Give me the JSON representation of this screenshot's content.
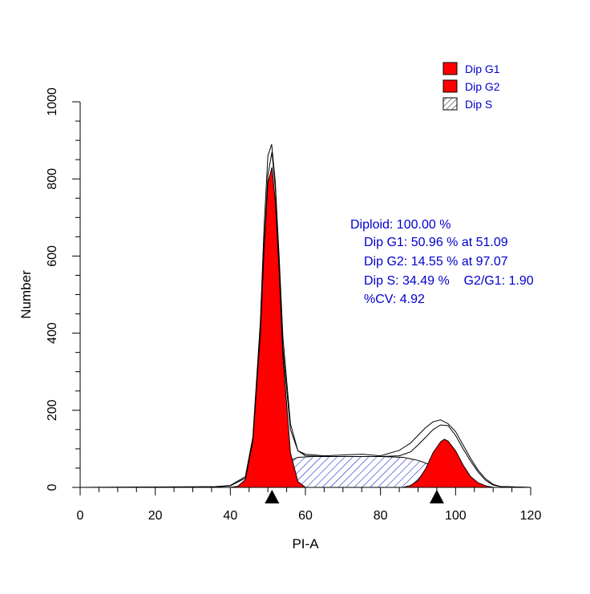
{
  "chart_data": {
    "type": "area",
    "title": "",
    "xlabel": "PI-A",
    "ylabel": "Number",
    "xlim": [
      0,
      120
    ],
    "ylim": [
      0,
      1000
    ],
    "x_ticks": [
      0,
      20,
      40,
      60,
      80,
      100,
      120
    ],
    "y_ticks": [
      0,
      200,
      400,
      600,
      800,
      1000
    ],
    "colors": {
      "g1": "#ff0000",
      "g2": "#ff0000",
      "s_hatch": "#0000cc",
      "outline": "#000000",
      "text": "#0000cc",
      "marker": "#000000"
    },
    "legend": {
      "position": "top-right",
      "items": [
        {
          "label": "Dip G1",
          "style": "solid-red"
        },
        {
          "label": "Dip G2",
          "style": "solid-red"
        },
        {
          "label": "Dip S",
          "style": "hatched"
        }
      ]
    },
    "stats": [
      "Diploid: 100.00 %",
      "Dip G1: 50.96 % at 51.09",
      "Dip G2: 14.55 % at 97.07",
      "Dip S: 34.49 %    G2/G1: 1.90",
      "%CV: 4.92"
    ],
    "markers": [
      51.1,
      95.0
    ],
    "series": [
      {
        "name": "Dip G1",
        "x": [
          40,
          42,
          44,
          46,
          48,
          49,
          50,
          51.1,
          52,
          53,
          54,
          56,
          58,
          60
        ],
        "values": [
          0,
          3,
          20,
          120,
          400,
          620,
          790,
          830,
          740,
          560,
          340,
          90,
          15,
          0
        ]
      },
      {
        "name": "Dip G2",
        "x": [
          86,
          88,
          90,
          92,
          94,
          96,
          97,
          98,
          100,
          102,
          104,
          106,
          108,
          110
        ],
        "values": [
          0,
          5,
          18,
          48,
          90,
          118,
          125,
          120,
          95,
          58,
          28,
          12,
          4,
          0
        ]
      },
      {
        "name": "Dip S",
        "x": [
          44,
          48,
          52,
          55,
          58,
          62,
          70,
          80,
          86,
          90,
          94,
          98,
          102,
          106,
          110
        ],
        "values": [
          0,
          10,
          40,
          65,
          78,
          80,
          80,
          80,
          78,
          70,
          56,
          38,
          20,
          7,
          0
        ]
      },
      {
        "name": "Histogram",
        "x": [
          0,
          36,
          40,
          44,
          46,
          48,
          49,
          50,
          51,
          52,
          53,
          54,
          56,
          58,
          60,
          65,
          70,
          75,
          80,
          85,
          88,
          90,
          92,
          94,
          96,
          98,
          100,
          102,
          104,
          106,
          108,
          110,
          112,
          120
        ],
        "values": [
          0,
          2,
          5,
          28,
          130,
          430,
          680,
          860,
          890,
          790,
          590,
          360,
          150,
          95,
          86,
          82,
          84,
          86,
          82,
          96,
          115,
          135,
          155,
          170,
          175,
          165,
          145,
          110,
          75,
          45,
          22,
          8,
          2,
          0
        ]
      },
      {
        "name": "Fit",
        "x": [
          0,
          36,
          40,
          44,
          46,
          48,
          49,
          50,
          51.1,
          52,
          53,
          54,
          56,
          58,
          60,
          65,
          70,
          75,
          80,
          85,
          88,
          90,
          92,
          94,
          96,
          98,
          100,
          102,
          104,
          106,
          108,
          110,
          112,
          120
        ],
        "values": [
          0,
          1,
          4,
          24,
          125,
          405,
          630,
          810,
          870,
          775,
          600,
          390,
          165,
          95,
          82,
          80,
          80,
          80,
          80,
          82,
          92,
          110,
          130,
          150,
          162,
          160,
          135,
          100,
          68,
          40,
          18,
          6,
          2,
          0
        ]
      }
    ]
  }
}
